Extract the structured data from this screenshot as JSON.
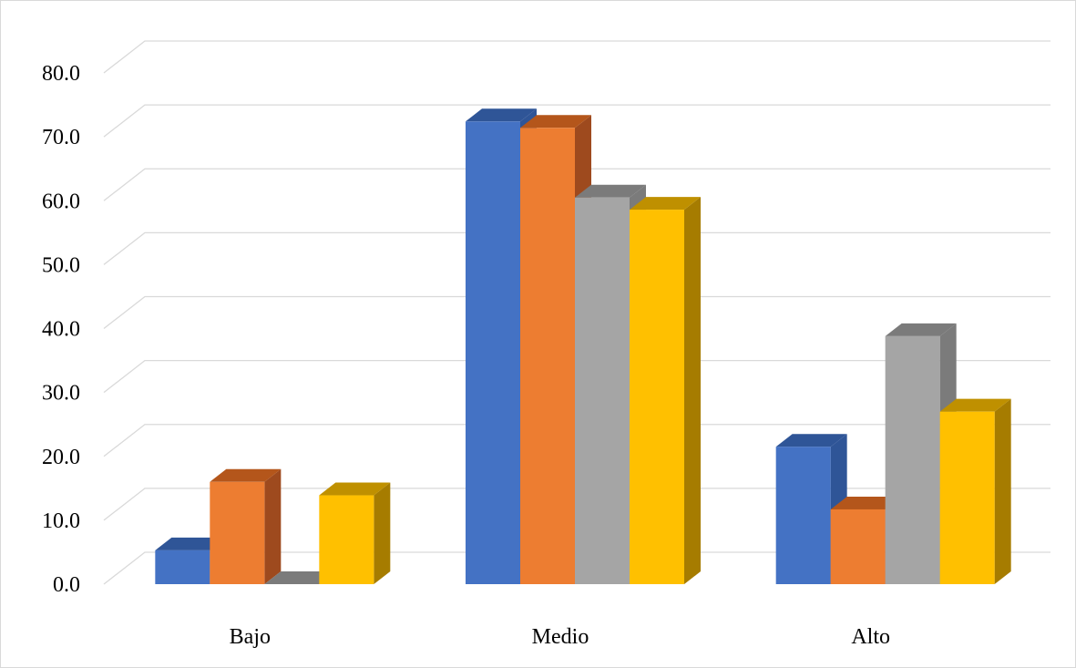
{
  "chart_data": {
    "type": "bar",
    "style": "3d-clustered-column",
    "categories": [
      "Bajo",
      "Medio",
      "Alto"
    ],
    "series": [
      {
        "color": "#4472C4",
        "top_color": "#2F5597",
        "side_color": "#2F5597",
        "values": [
          5.3,
          72.4,
          21.5
        ]
      },
      {
        "color": "#ED7D31",
        "top_color": "#B4561B",
        "side_color": "#9E4A1E",
        "values": [
          16.0,
          71.4,
          11.7
        ]
      },
      {
        "color": "#A5A5A5",
        "top_color": "#7B7B7B",
        "side_color": "#7B7B7B",
        "values": [
          0.0,
          60.5,
          38.8
        ]
      },
      {
        "color": "#FFC000",
        "top_color": "#BF9000",
        "side_color": "#A67C00",
        "values": [
          13.9,
          58.6,
          27.0
        ]
      }
    ],
    "ylim": [
      0,
      80
    ],
    "yticks": [
      "0.0",
      "10.0",
      "20.0",
      "30.0",
      "40.0",
      "50.0",
      "60.0",
      "70.0",
      "80.0"
    ],
    "grid": true,
    "title": "",
    "xlabel": "",
    "ylabel": "",
    "legend": "none"
  }
}
